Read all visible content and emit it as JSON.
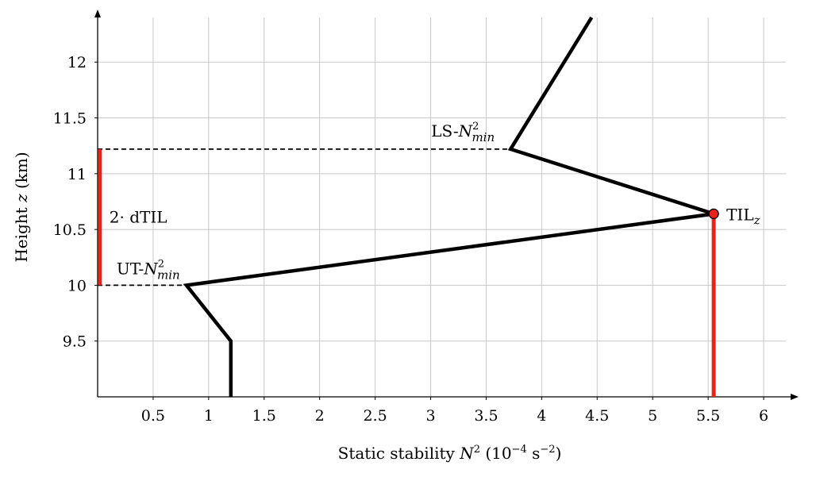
{
  "chart_data": {
    "type": "line",
    "xlabel": {
      "prefix": "Static stability ",
      "var": "N",
      "sup": "2",
      "mid": " (10",
      "unit_sup": "−4",
      "unit": " s",
      "unit_sup2": "−2",
      "suffix": ")"
    },
    "ylabel": {
      "prefix": "Height ",
      "var": "z",
      "suffix": " (km)"
    },
    "xlim": [
      0,
      6.2
    ],
    "ylim": [
      9.0,
      12.4
    ],
    "grid": true,
    "x_ticks": [
      0.5,
      1,
      1.5,
      2,
      2.5,
      3,
      3.5,
      4,
      4.5,
      5,
      5.5,
      6
    ],
    "x_tick_labels": [
      "0.5",
      "1",
      "1.5",
      "2",
      "2.5",
      "3",
      "3.5",
      "4",
      "4.5",
      "5",
      "5.5",
      "6"
    ],
    "y_ticks": [
      9.5,
      10,
      10.5,
      11,
      11.5,
      12
    ],
    "y_tick_labels": [
      "9.5",
      "10",
      "10.5",
      "11",
      "11.5",
      "12"
    ],
    "series": [
      {
        "x": [
          1.2,
          1.2,
          0.8,
          5.55,
          3.72,
          4.45
        ],
        "y": [
          9.0,
          9.5,
          10.0,
          10.64,
          11.22,
          12.4
        ],
        "color": "#000000"
      }
    ],
    "dashed_lines": [
      {
        "x": [
          0,
          0.8
        ],
        "y": [
          10.0,
          10.0
        ]
      },
      {
        "x": [
          0,
          3.72
        ],
        "y": [
          11.22,
          11.22
        ]
      }
    ],
    "red_bars": [
      {
        "x": [
          0.02,
          0.02
        ],
        "y": [
          10.0,
          11.22
        ],
        "color": "#e8241a"
      },
      {
        "x": [
          5.55,
          5.55
        ],
        "y": [
          9.0,
          10.64
        ],
        "color": "#e8241a"
      }
    ],
    "marker": {
      "x": 5.55,
      "y": 10.64,
      "color": "#e8241a"
    },
    "annotations": [
      {
        "id": "ls",
        "x": 3.72,
        "y": 11.22,
        "text": "LS-",
        "var": "N",
        "sup": "2",
        "sub": "min"
      },
      {
        "id": "ut",
        "x": 0.8,
        "y": 10.0,
        "text": "UT-",
        "var": "N",
        "sup": "2",
        "sub": "min"
      },
      {
        "id": "dtil",
        "x": 0.02,
        "y": 10.61,
        "text": "2· dTIL"
      },
      {
        "id": "til",
        "x": 5.55,
        "y": 10.64,
        "text": "TIL",
        "sub": "z"
      }
    ]
  }
}
